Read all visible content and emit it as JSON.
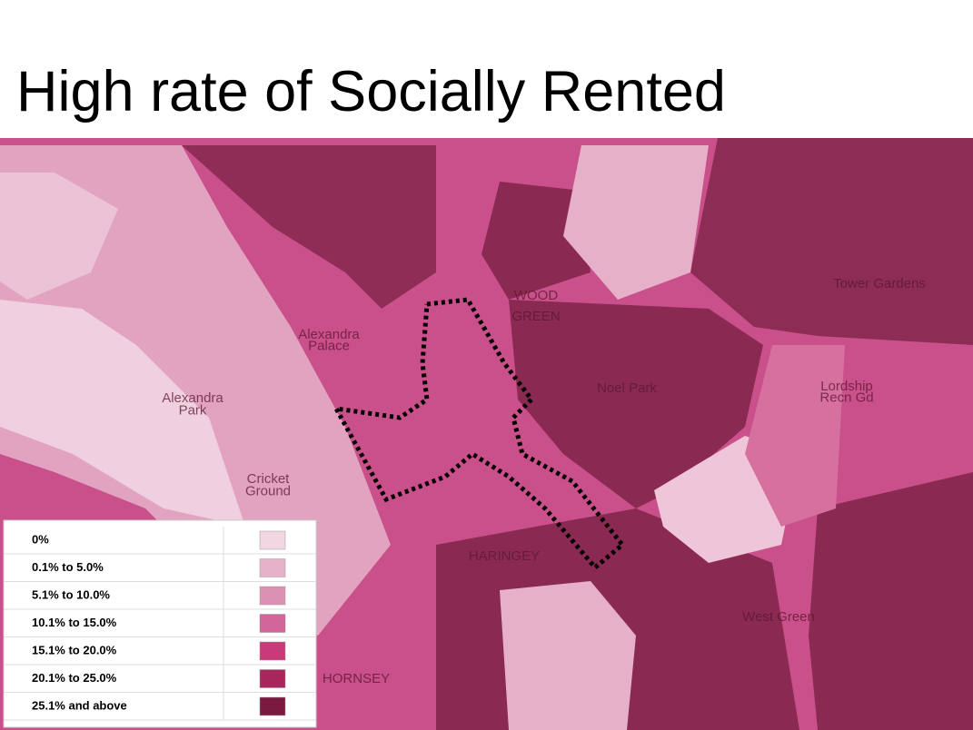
{
  "title": "High rate of Socially Rented",
  "map": {
    "places": [
      {
        "lines": [
          "WOOD",
          "GREEN"
        ]
      },
      {
        "lines": [
          "Noel Park"
        ]
      },
      {
        "lines": [
          "Tower Gardens"
        ]
      },
      {
        "lines": [
          "Alexandra",
          "Palace"
        ]
      },
      {
        "lines": [
          "Alexandra",
          "Park"
        ]
      },
      {
        "lines": [
          "Cricket",
          "Ground"
        ]
      },
      {
        "lines": [
          "Lordship",
          "Recn Gd"
        ]
      },
      {
        "lines": [
          "HARINGEY"
        ]
      },
      {
        "lines": [
          "West Green"
        ]
      },
      {
        "lines": [
          "HORNSEY"
        ]
      }
    ]
  },
  "legend": {
    "items": [
      {
        "label": "0%",
        "color": "#f2d6e2"
      },
      {
        "label": "0.1% to 5.0%",
        "color": "#e6b2c9"
      },
      {
        "label": "5.1% to 10.0%",
        "color": "#dc90b3"
      },
      {
        "label": "10.1% to 15.0%",
        "color": "#d2669b"
      },
      {
        "label": "15.1% to 20.0%",
        "color": "#c93b78"
      },
      {
        "label": "20.1% to 25.0%",
        "color": "#a8265b"
      },
      {
        "label": "25.1% and above",
        "color": "#7a1a40"
      }
    ]
  }
}
